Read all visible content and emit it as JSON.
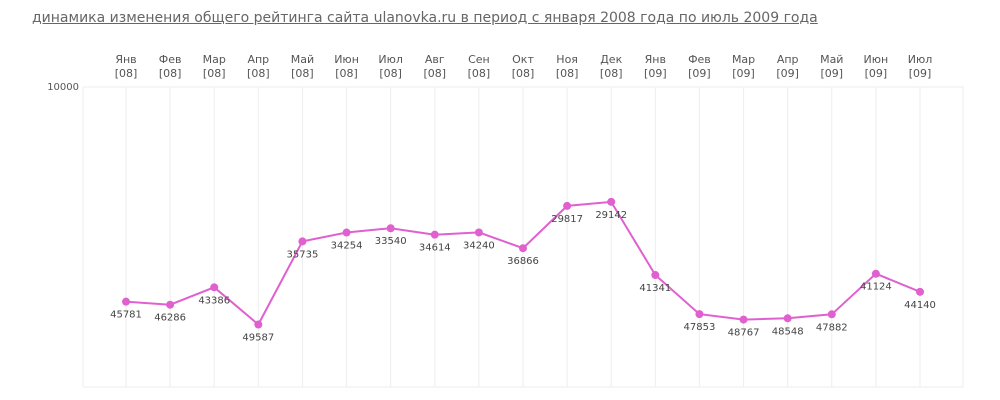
{
  "title": "динамика изменения общего рейтинга сайта ulanovka.ru в период с января 2008 года по июль 2009 года",
  "chart_data": {
    "type": "line",
    "title": "динамика изменения общего рейтинга сайта ulanovka.ru в период с января 2008 года по июль 2009 года",
    "categories": [
      [
        "Янв",
        "[08]"
      ],
      [
        "Фев",
        "[08]"
      ],
      [
        "Мар",
        "[08]"
      ],
      [
        "Апр",
        "[08]"
      ],
      [
        "Май",
        "[08]"
      ],
      [
        "Июн",
        "[08]"
      ],
      [
        "Июл",
        "[08]"
      ],
      [
        "Авг",
        "[08]"
      ],
      [
        "Сен",
        "[08]"
      ],
      [
        "Окт",
        "[08]"
      ],
      [
        "Ноя",
        "[08]"
      ],
      [
        "Дек",
        "[08]"
      ],
      [
        "Янв",
        "[09]"
      ],
      [
        "Фев",
        "[09]"
      ],
      [
        "Мар",
        "[09]"
      ],
      [
        "Апр",
        "[09]"
      ],
      [
        "Май",
        "[09]"
      ],
      [
        "Июн",
        "[09]"
      ],
      [
        "Июл",
        "[09]"
      ]
    ],
    "values": [
      45781,
      46286,
      43386,
      49587,
      35735,
      34254,
      33540,
      34614,
      34240,
      36866,
      29817,
      29142,
      41341,
      47853,
      48767,
      48548,
      47882,
      41124,
      44140
    ],
    "y_tick_labels": [
      "10000"
    ],
    "y_axis_reversed": true,
    "ylim": [
      10000,
      60000
    ],
    "xlabel": "",
    "ylabel": "",
    "grid": true,
    "line_color": "#e060d0",
    "grid_color": "#eeeeee"
  }
}
